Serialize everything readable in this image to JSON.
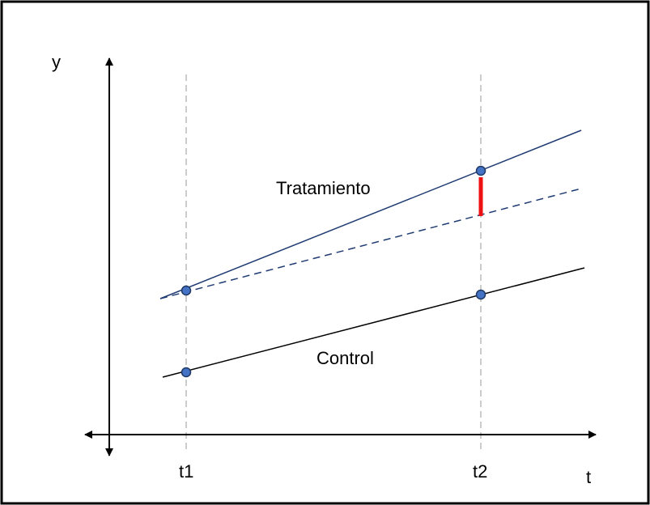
{
  "axes": {
    "y_label": "y",
    "x_label": "t"
  },
  "ticks": {
    "t1": "t1",
    "t2": "t2"
  },
  "lines": {
    "treatment_label": "Tratamiento",
    "control_label": "Control"
  },
  "colors": {
    "treatment_line": "#1f3b73",
    "control_line": "#000000",
    "marker_fill": "#4472c4",
    "marker_stroke": "#1f3864",
    "effect_bar": "#ee1111",
    "guide_line": "#bbbbbb",
    "frame": "#000000"
  }
}
